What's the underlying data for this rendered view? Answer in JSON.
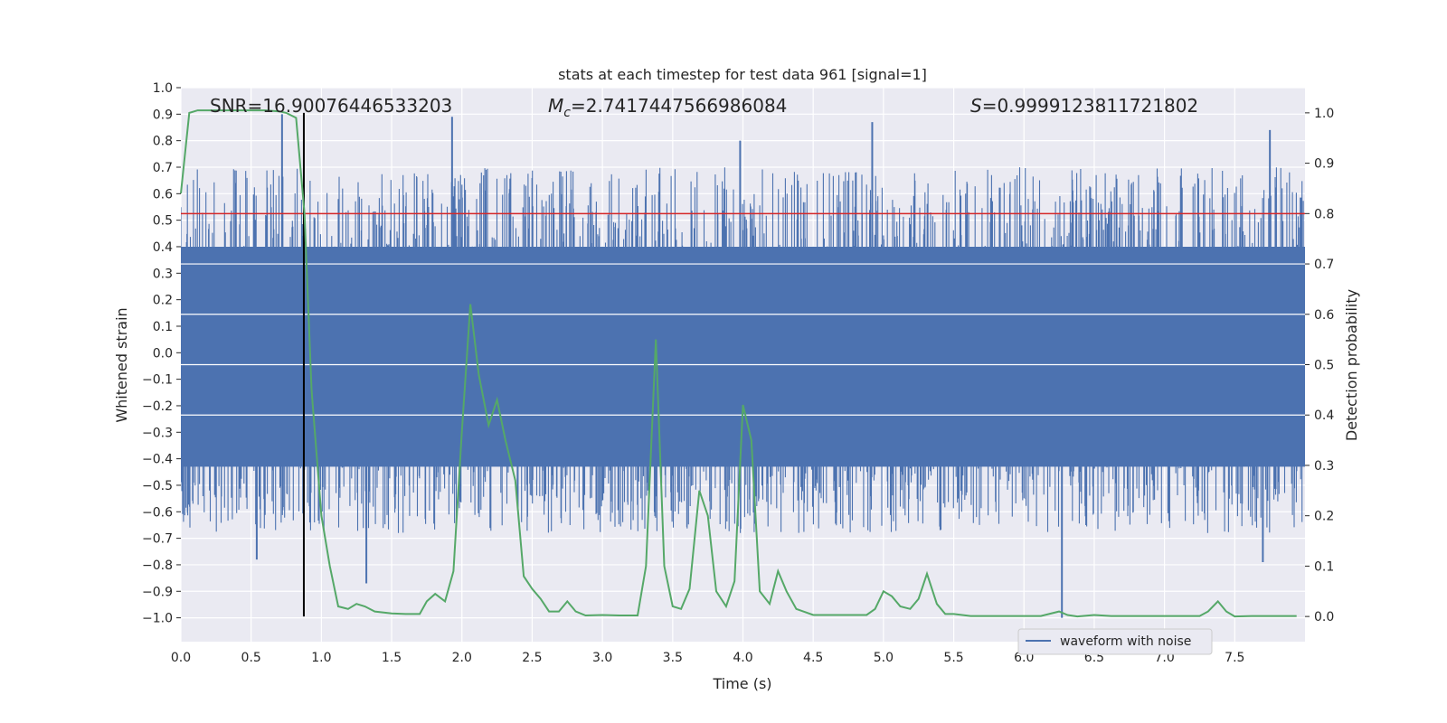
{
  "chart_data": {
    "type": "line",
    "title": "stats at each timestep for test data 961 [signal=1]",
    "xlabel": "Time (s)",
    "ylabel_left": "Whitened strain",
    "ylabel_right": "Detection probability",
    "xlim": [
      0,
      8
    ],
    "ylim_left": [
      -1.09,
      1.0
    ],
    "ylim_right": [
      -0.05,
      1.05
    ],
    "x_ticks": [
      "0.0",
      "0.5",
      "1.0",
      "1.5",
      "2.0",
      "2.5",
      "3.0",
      "3.5",
      "4.0",
      "4.5",
      "5.0",
      "5.5",
      "6.0",
      "6.5",
      "7.0",
      "7.5"
    ],
    "x_tick_values": [
      0,
      0.5,
      1,
      1.5,
      2,
      2.5,
      3,
      3.5,
      4,
      4.5,
      5,
      5.5,
      6,
      6.5,
      7,
      7.5
    ],
    "y_left_ticks": [
      "1.0",
      "0.9",
      "0.8",
      "0.7",
      "0.6",
      "0.5",
      "0.4",
      "0.3",
      "0.2",
      "0.1",
      "0.0",
      "−0.1",
      "−0.2",
      "−0.3",
      "−0.4",
      "−0.5",
      "−0.6",
      "−0.7",
      "−0.8",
      "−0.9",
      "−1.0"
    ],
    "y_left_tick_values": [
      1.0,
      0.9,
      0.8,
      0.7,
      0.6,
      0.5,
      0.4,
      0.3,
      0.2,
      0.1,
      0.0,
      -0.1,
      -0.2,
      -0.3,
      -0.4,
      -0.5,
      -0.6,
      -0.7,
      -0.8,
      -0.9,
      -1.0
    ],
    "y_right_ticks": [
      "1.0",
      "0.9",
      "0.8",
      "0.7",
      "0.6",
      "0.5",
      "0.4",
      "0.3",
      "0.2",
      "0.1",
      "0.0"
    ],
    "y_right_tick_values": [
      1.0,
      0.9,
      0.8,
      0.7,
      0.6,
      0.5,
      0.4,
      0.3,
      0.2,
      0.1,
      0.0
    ],
    "annotations": {
      "snr": "SNR=16.90076446533203",
      "mc_symbol": "M",
      "mc_sub": "c",
      "mc_value": "=2.7417447566986084",
      "s_symbol": "S",
      "s_value": "=0.9999123811721802"
    },
    "threshold_line": {
      "value_left_axis": 0.525,
      "color": "#d62728"
    },
    "vertical_marker": {
      "x": 0.875,
      "color": "#000000"
    },
    "legend": {
      "label": "waveform with noise",
      "position": "lower-right"
    },
    "series": [
      {
        "name": "waveform with noise",
        "axis": "left",
        "color": "#4c72b0",
        "style": "dense noise band",
        "band_core": [
          -0.43,
          0.4
        ],
        "notable_peaks": [
          {
            "x": 0.72,
            "y": 0.9
          },
          {
            "x": 1.93,
            "y": 0.89
          },
          {
            "x": 3.98,
            "y": 0.8
          },
          {
            "x": 4.92,
            "y": 0.87
          },
          {
            "x": 7.75,
            "y": 0.84
          },
          {
            "x": 6.27,
            "y": -1.0
          },
          {
            "x": 0.54,
            "y": -0.78
          },
          {
            "x": 1.32,
            "y": -0.87
          },
          {
            "x": 7.7,
            "y": -0.79
          }
        ]
      },
      {
        "name": "detection probability",
        "axis": "right",
        "color": "#55a868",
        "x": [
          0.0,
          0.06,
          0.12,
          0.2,
          0.3,
          0.4,
          0.5,
          0.6,
          0.7,
          0.75,
          0.82,
          0.88,
          0.93,
          1.0,
          1.06,
          1.12,
          1.19,
          1.25,
          1.31,
          1.38,
          1.5,
          1.6,
          1.7,
          1.75,
          1.81,
          1.88,
          1.94,
          2.0,
          2.06,
          2.12,
          2.19,
          2.25,
          2.31,
          2.38,
          2.44,
          2.5,
          2.56,
          2.62,
          2.69,
          2.75,
          2.81,
          2.88,
          3.0,
          3.12,
          3.25,
          3.31,
          3.38,
          3.44,
          3.5,
          3.56,
          3.62,
          3.69,
          3.75,
          3.81,
          3.88,
          3.94,
          4.0,
          4.06,
          4.12,
          4.19,
          4.25,
          4.31,
          4.38,
          4.5,
          4.62,
          4.75,
          4.88,
          4.94,
          5.0,
          5.06,
          5.12,
          5.19,
          5.25,
          5.31,
          5.38,
          5.44,
          5.5,
          5.62,
          5.75,
          5.88,
          6.0,
          6.12,
          6.25,
          6.31,
          6.38,
          6.5,
          6.62,
          6.75,
          7.0,
          7.25,
          7.31,
          7.38,
          7.44,
          7.5,
          7.62,
          7.75,
          7.94
        ],
        "values": [
          0.84,
          1.0,
          1.005,
          1.005,
          1.005,
          1.005,
          1.005,
          1.005,
          1.003,
          1.0,
          0.99,
          0.8,
          0.45,
          0.2,
          0.1,
          0.02,
          0.015,
          0.025,
          0.02,
          0.01,
          0.006,
          0.005,
          0.005,
          0.03,
          0.045,
          0.03,
          0.09,
          0.37,
          0.62,
          0.48,
          0.38,
          0.43,
          0.35,
          0.27,
          0.08,
          0.055,
          0.035,
          0.01,
          0.01,
          0.03,
          0.01,
          0.002,
          0.003,
          0.002,
          0.002,
          0.1,
          0.55,
          0.1,
          0.02,
          0.015,
          0.055,
          0.25,
          0.2,
          0.05,
          0.02,
          0.07,
          0.42,
          0.35,
          0.05,
          0.025,
          0.09,
          0.05,
          0.015,
          0.003,
          0.003,
          0.003,
          0.003,
          0.015,
          0.05,
          0.04,
          0.02,
          0.015,
          0.035,
          0.085,
          0.025,
          0.005,
          0.005,
          0.001,
          0.001,
          0.001,
          0.001,
          0.001,
          0.01,
          0.003,
          0.0,
          0.003,
          0.001,
          0.001,
          0.001,
          0.001,
          0.01,
          0.03,
          0.01,
          0.0,
          0.001,
          0.001,
          0.001
        ]
      }
    ]
  }
}
